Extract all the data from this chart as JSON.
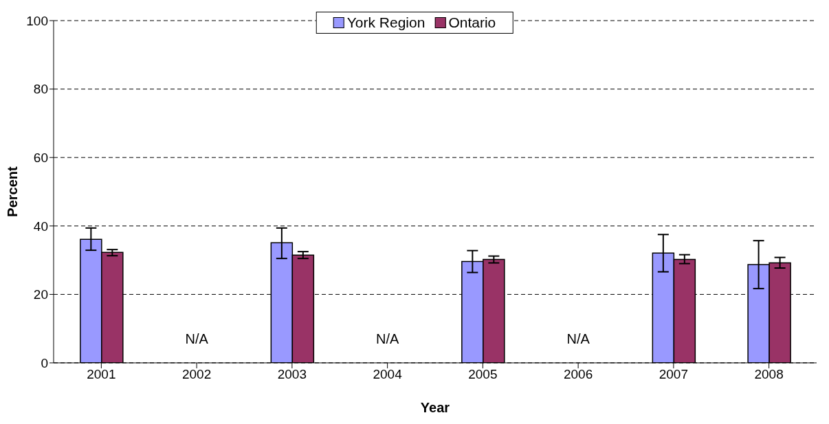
{
  "chart_data": {
    "type": "bar",
    "xlabel": "Year",
    "ylabel": "Percent",
    "categories": [
      "2001",
      "2002",
      "2003",
      "2004",
      "2005",
      "2006",
      "2007",
      "2008"
    ],
    "series": [
      {
        "name": "York Region",
        "color": "#9999ff",
        "values": [
          36.1,
          null,
          35.1,
          null,
          29.6,
          null,
          32.1,
          28.7
        ],
        "errors": [
          [
            32.9,
            39.4
          ],
          null,
          [
            30.5,
            39.4
          ],
          null,
          [
            26.4,
            32.8
          ],
          null,
          [
            26.6,
            37.5
          ],
          [
            21.7,
            35.7
          ]
        ]
      },
      {
        "name": "Ontario",
        "color": "#993366",
        "values": [
          32.3,
          null,
          31.5,
          null,
          30.2,
          null,
          30.2,
          29.2
        ],
        "errors": [
          [
            31.3,
            33.1
          ],
          null,
          [
            30.5,
            32.5
          ],
          null,
          [
            29.2,
            31.2
          ],
          null,
          [
            29.0,
            31.6
          ],
          [
            27.7,
            30.8
          ]
        ]
      }
    ],
    "annotations": [
      "N/A",
      "N/A",
      "N/A"
    ],
    "ylim": [
      0,
      100
    ],
    "yticks": [
      0,
      20,
      40,
      60,
      80,
      100
    ],
    "grid": "y",
    "legend": "top"
  }
}
